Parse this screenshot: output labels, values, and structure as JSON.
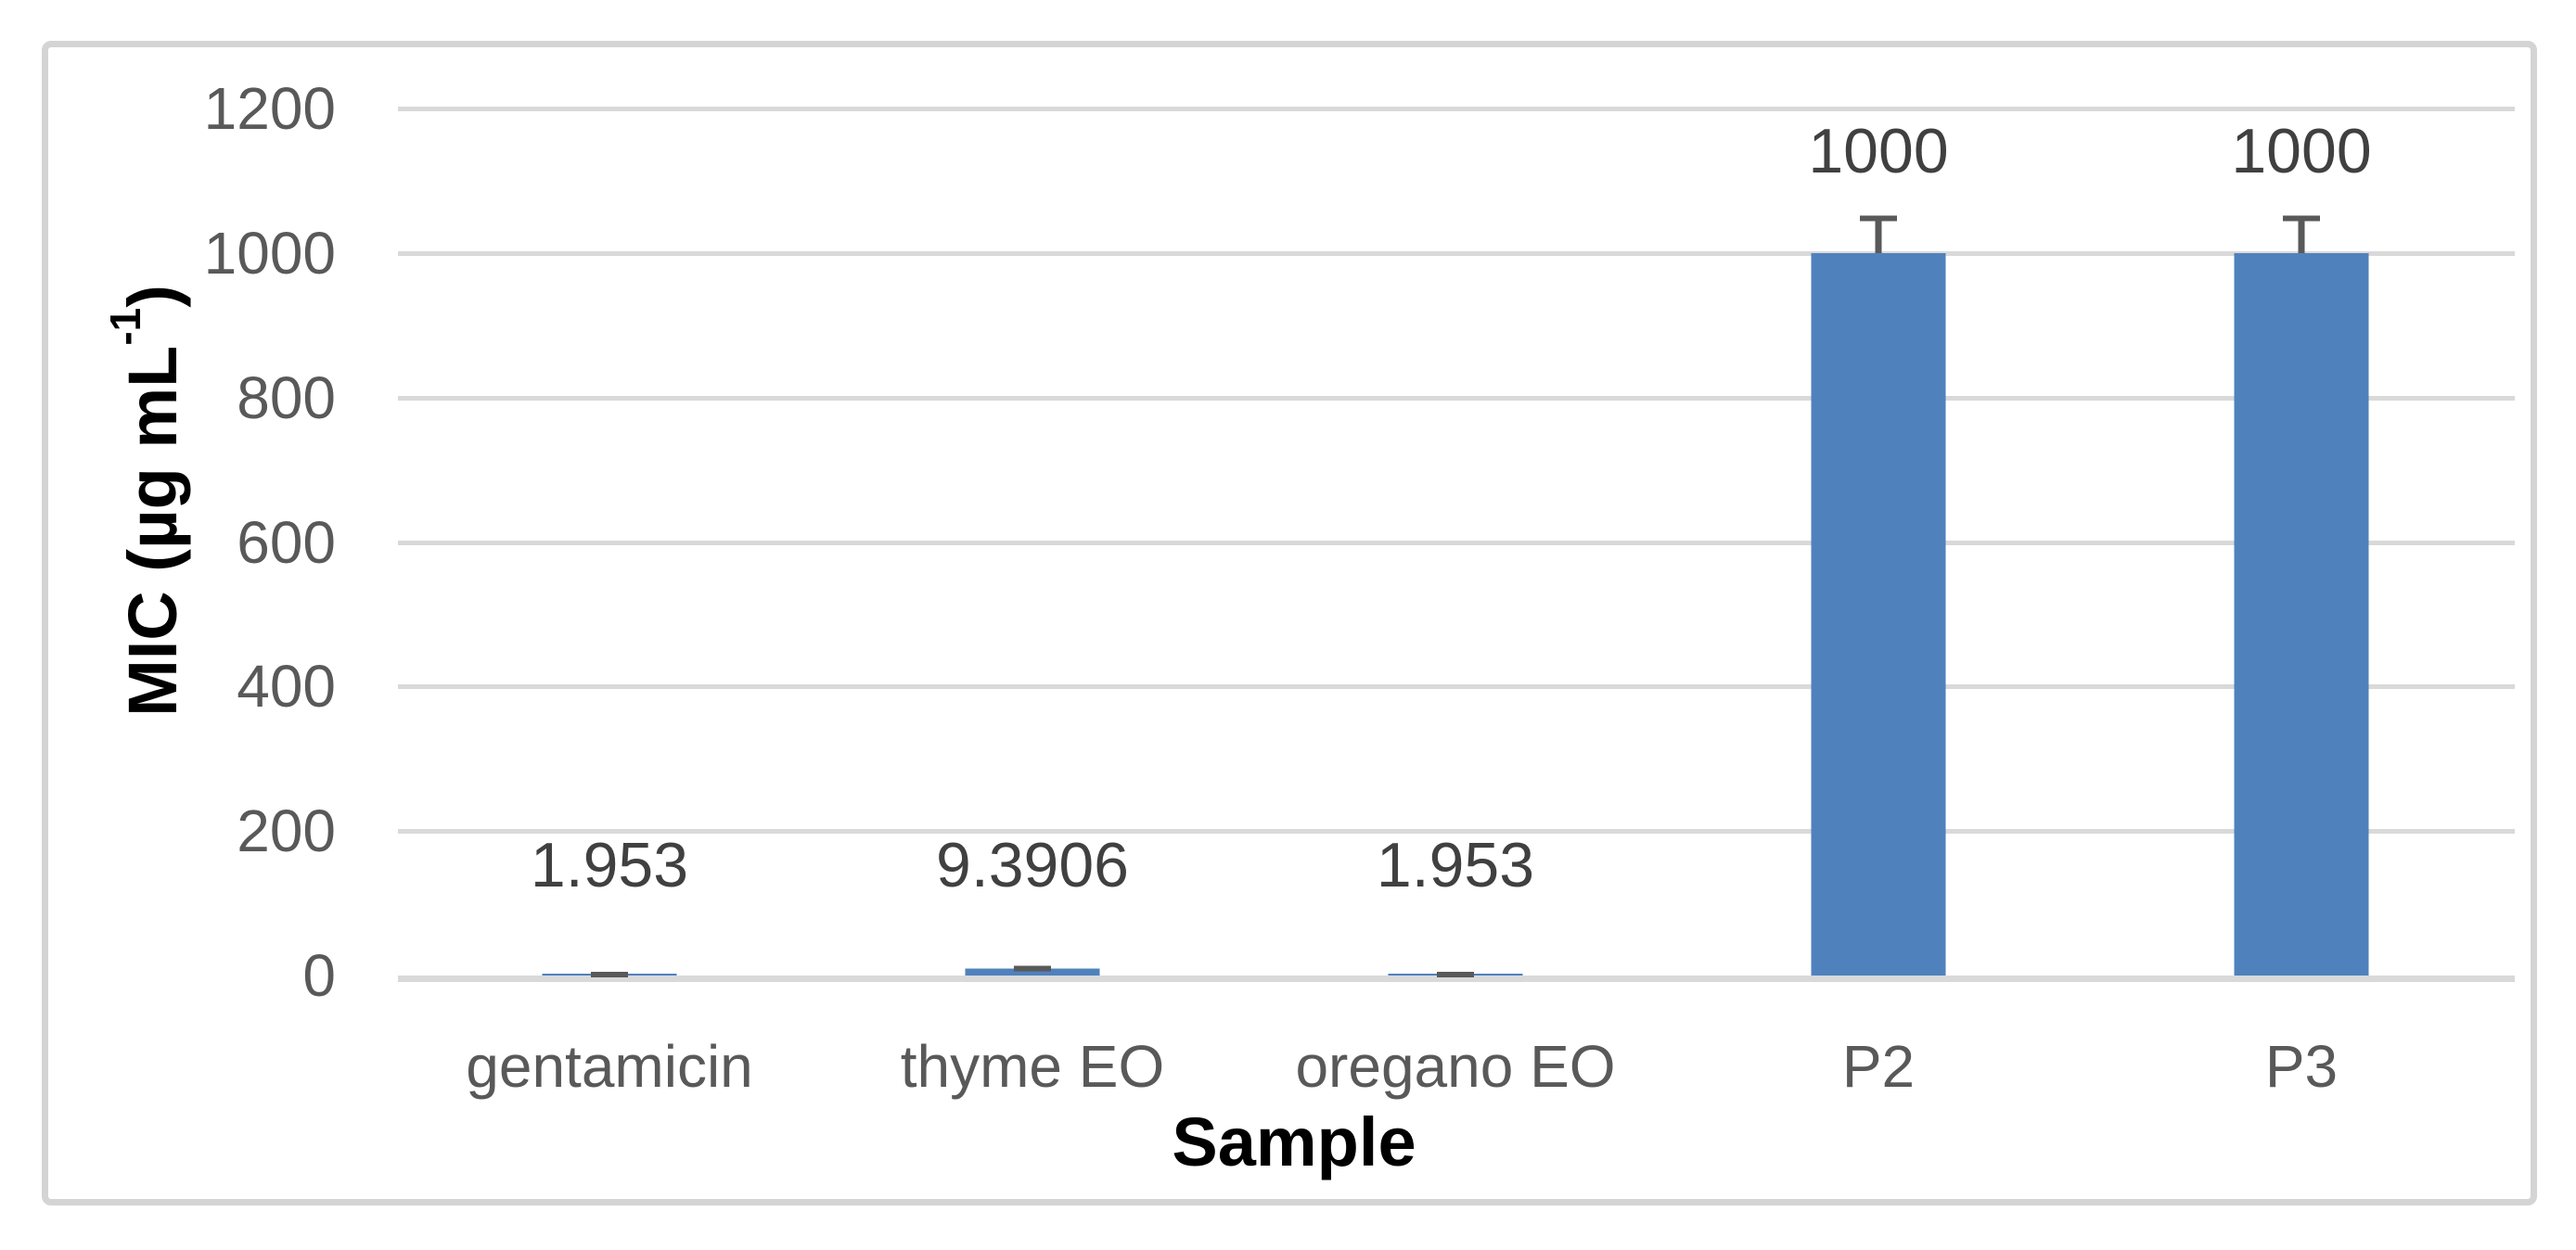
{
  "figure": {
    "background": "#FFFFFF",
    "border_color": "#D4D4D4"
  },
  "y_axis": {
    "title_base": "MIC (µg mL",
    "title_sup": "-1",
    "title_close": ")",
    "tick_labels": [
      "0",
      "200",
      "400",
      "600",
      "800",
      "1000",
      "1200"
    ],
    "tick_values": [
      0,
      200,
      400,
      600,
      800,
      1000,
      1200
    ],
    "tick_color": "#595959"
  },
  "x_axis": {
    "title": "Sample",
    "label_color": "#595959"
  },
  "chart_data": {
    "type": "bar",
    "categories": [
      "gentamicin",
      "thyme EO",
      "oregano EO",
      "P2",
      "P3"
    ],
    "values": [
      1.953,
      9.3906,
      1.953,
      1000,
      1000
    ],
    "data_labels": [
      "1.953",
      "9.3906",
      "1.953",
      "1000",
      "1000"
    ],
    "error_plus_est": [
      3,
      4,
      3,
      52,
      52
    ],
    "title": "",
    "xlabel": "Sample",
    "ylabel": "MIC (µg mL-1)",
    "ylim": [
      0,
      1200
    ],
    "grid": true,
    "legend_position": "none",
    "bar_color": "#4F81BD",
    "error_bar_color": "#595959",
    "gridline_color": "#D9D9D9",
    "zero_line_color": "#D9D9D9",
    "tick_label_color": "#595959",
    "data_label_color": "#404040"
  }
}
